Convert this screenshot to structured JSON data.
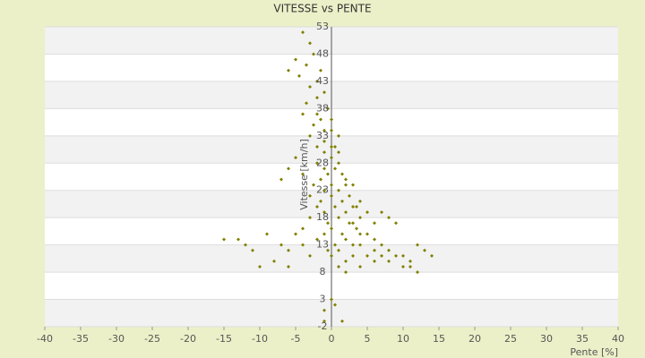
{
  "chart_data": {
    "type": "scatter",
    "title": "VITESSE vs PENTE",
    "x_label": "Pente [%]",
    "y_label": "Vitesse [km/h]",
    "color": "#808000",
    "grid": true,
    "xlim": [
      -40,
      40
    ],
    "xticks": [
      -40,
      -35,
      -30,
      -25,
      -20,
      -15,
      -10,
      -5,
      0,
      5,
      10,
      15,
      20,
      25,
      30,
      35,
      40
    ],
    "ylim": [
      -2,
      53
    ],
    "yticks": [
      -2,
      3,
      8,
      13,
      18,
      23,
      28,
      33,
      38,
      43,
      48,
      53
    ],
    "x": [
      -4,
      -3,
      -2.5,
      -5,
      -3.5,
      -1.5,
      -4.5,
      -2,
      -3,
      -1,
      -6,
      -2,
      -3.5,
      -0.5,
      -4,
      -1.5,
      -2.5,
      0,
      -3,
      -1,
      1,
      -2,
      0.5,
      -1,
      0,
      1,
      -2,
      0.5,
      -0.5,
      1.5,
      -1.5,
      2,
      0,
      -2.5,
      1,
      -1,
      2.5,
      0,
      -1.5,
      1.5,
      3,
      0.5,
      -1,
      2,
      -3,
      -4,
      -5,
      -6,
      -7,
      4,
      1,
      -0.5,
      2.5,
      3.5,
      0,
      1.5,
      5,
      -1,
      2,
      4,
      3,
      0.5,
      6,
      1,
      5,
      3,
      7,
      2,
      4,
      6,
      8,
      9,
      10,
      11,
      12,
      13,
      14,
      12,
      7,
      8,
      6,
      9,
      3.5,
      -0.5,
      0,
      1,
      2,
      0,
      -1,
      0.5,
      1.5,
      -1,
      -15,
      -13,
      -12,
      -11,
      -9,
      -8,
      -10,
      -6,
      -6,
      -4,
      -5,
      -3,
      -2,
      -7,
      -3,
      -2,
      -4,
      2,
      3,
      -1,
      0,
      -2,
      4,
      5,
      6,
      7,
      8,
      10,
      11,
      4,
      3,
      -1,
      0,
      1
    ],
    "values": [
      52,
      50,
      48,
      47,
      46,
      45,
      44,
      43,
      42,
      41,
      45,
      40,
      39,
      38,
      37,
      36,
      35,
      34,
      33,
      32,
      33,
      31,
      31,
      30,
      29,
      28,
      28,
      27,
      26,
      26,
      25,
      24,
      24,
      24,
      23,
      23,
      22,
      22,
      21,
      21,
      20,
      20,
      19,
      19,
      22,
      26,
      29,
      27,
      25,
      18,
      18,
      17,
      17,
      16,
      16,
      15,
      15,
      15,
      14,
      13,
      13,
      13,
      12,
      12,
      11,
      11,
      11,
      10,
      9,
      10,
      10,
      11,
      11,
      9,
      8,
      12,
      11,
      13,
      19,
      18,
      17,
      17,
      20,
      12,
      11,
      9,
      8,
      3,
      1,
      2,
      -1,
      -1,
      14,
      14,
      13,
      12,
      15,
      10,
      9,
      12,
      9,
      13,
      15,
      11,
      14,
      13,
      18,
      20,
      16,
      25,
      24,
      34,
      36,
      37,
      21,
      19,
      14,
      13,
      12,
      9,
      10,
      15,
      17,
      27,
      31,
      30
    ]
  }
}
